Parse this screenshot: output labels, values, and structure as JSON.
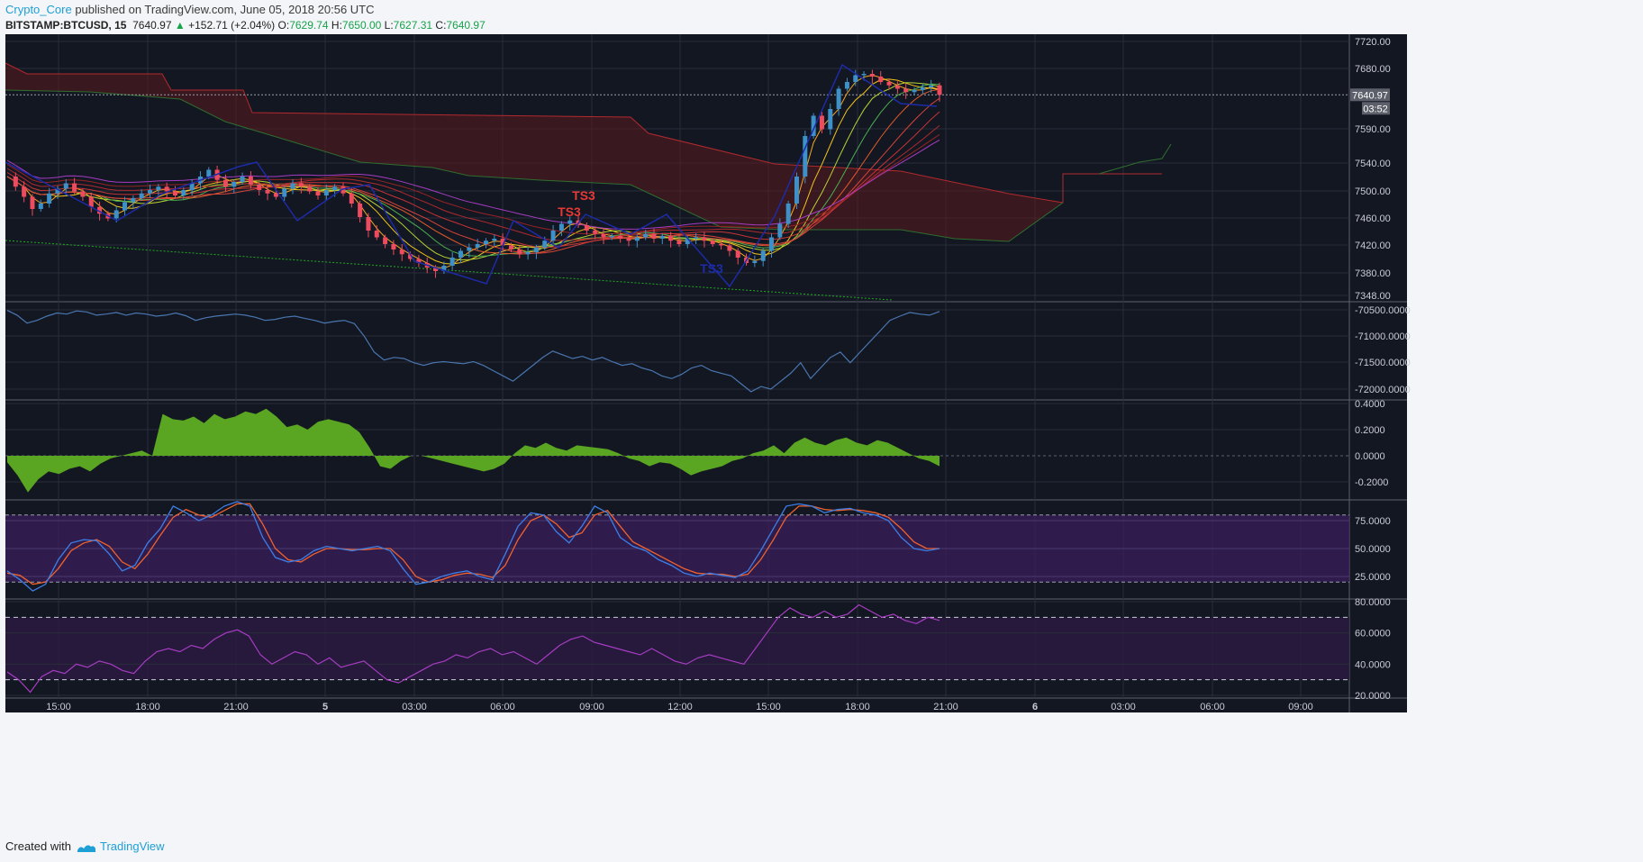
{
  "header": {
    "author": "Crypto_Core",
    "published_text": " published on TradingView.com, June 05, 2018 20:56 UTC",
    "symbol": "BITSTAMP:BTCUSD, 15",
    "last_price": "7640.97",
    "change": "+152.71 (+2.04%)",
    "open_label": "O:",
    "open": "7629.74",
    "high_label": "H:",
    "high": "7650.00",
    "low_label": "L:",
    "low": "7627.31",
    "close_label": "C:",
    "close": "7640.97"
  },
  "footer": {
    "created_with": "Created with",
    "brand": "TradingView"
  },
  "colors": {
    "background": "#131722",
    "grid": "#2a2e39",
    "up_candle": "#3d91c8",
    "down_candle": "#ef4b5f",
    "histogram": "#5aa521",
    "stoch_k": "#3d7ee6",
    "stoch_d": "#f0622d",
    "rsi": "#a63cc2",
    "obv": "#4a76b0",
    "zigzag": "#1d2ba8",
    "cloud": "#5a1a1e"
  },
  "chart_data": [
    {
      "type": "candlestick",
      "y_ticks": [
        "7720.00",
        "7680.00",
        "7590.00",
        "7540.00",
        "7500.00",
        "7460.00",
        "7420.00",
        "7380.00",
        "7348.00"
      ],
      "x_ticks": [
        "15:00",
        "18:00",
        "21:00",
        "5",
        "03:00",
        "06:00",
        "09:00",
        "12:00",
        "15:00",
        "18:00",
        "21:00",
        "6",
        "03:00",
        "06:00",
        "09:00"
      ],
      "last_price_label": "7640.97",
      "countdown_label": "03:52",
      "annotations": [
        "TS3",
        "TS3",
        "TS3"
      ],
      "ohlc_series": [
        7520,
        7505,
        7490,
        7472,
        7480,
        7495,
        7502,
        7510,
        7498,
        7490,
        7475,
        7465,
        7458,
        7470,
        7482,
        7488,
        7495,
        7500,
        7505,
        7498,
        7492,
        7500,
        7510,
        7520,
        7530,
        7515,
        7505,
        7512,
        7520,
        7508,
        7500,
        7495,
        7490,
        7502,
        7510,
        7505,
        7498,
        7492,
        7500,
        7505,
        7495,
        7480,
        7460,
        7440,
        7430,
        7420,
        7412,
        7405,
        7398,
        7392,
        7385,
        7380,
        7388,
        7400,
        7410,
        7415,
        7420,
        7425,
        7428,
        7418,
        7412,
        7405,
        7408,
        7415,
        7425,
        7440,
        7450,
        7455,
        7448,
        7440,
        7435,
        7430,
        7432,
        7428,
        7425,
        7430,
        7435,
        7428,
        7432,
        7425,
        7420,
        7428,
        7430,
        7425,
        7420,
        7418,
        7410,
        7400,
        7392,
        7395,
        7410,
        7430,
        7450,
        7480,
        7520,
        7580,
        7610,
        7590,
        7620,
        7650,
        7660,
        7670,
        7672,
        7668,
        7660,
        7655,
        7650,
        7645,
        7648,
        7652,
        7655,
        7641
      ]
    },
    {
      "type": "line",
      "y_ticks": [
        "-70500.0000",
        "-71000.0000",
        "-71500.0000",
        "-72000.0000"
      ],
      "series": [
        {
          "values": [
            -70510,
            -70600,
            -70750,
            -70700,
            -70620,
            -70560,
            -70580,
            -70520,
            -70540,
            -70600,
            -70580,
            -70550,
            -70600,
            -70560,
            -70580,
            -70620,
            -70600,
            -70560,
            -70610,
            -70700,
            -70650,
            -70620,
            -70600,
            -70580,
            -70600,
            -70640,
            -70700,
            -70680,
            -70640,
            -70620,
            -70660,
            -70700,
            -70750,
            -70720,
            -70700,
            -70760,
            -71000,
            -71300,
            -71450,
            -71400,
            -71420,
            -71500,
            -71550,
            -71500,
            -71480,
            -71500,
            -71520,
            -71480,
            -71550,
            -71650,
            -71750,
            -71850,
            -71700,
            -71550,
            -71400,
            -71280,
            -71350,
            -71420,
            -71380,
            -71450,
            -71400,
            -71480,
            -71550,
            -71520,
            -71600,
            -71650,
            -71750,
            -71800,
            -71720,
            -71600,
            -71550,
            -71650,
            -71700,
            -71750,
            -71900,
            -72050,
            -71950,
            -72000,
            -71850,
            -71700,
            -71500,
            -71800,
            -71600,
            -71400,
            -71300,
            -71500,
            -71300,
            -71100,
            -70900,
            -70700,
            -70620,
            -70550,
            -70580,
            -70600,
            -70530
          ]
        }
      ]
    },
    {
      "type": "area",
      "y_ticks": [
        "0.4000",
        "0.2000",
        "0.0000",
        "-0.2000"
      ],
      "series": [
        {
          "values": [
            -0.05,
            -0.15,
            -0.28,
            -0.18,
            -0.12,
            -0.14,
            -0.1,
            -0.08,
            -0.12,
            -0.06,
            -0.02,
            0.0,
            0.02,
            0.04,
            0.0,
            0.32,
            0.28,
            0.27,
            0.3,
            0.25,
            0.32,
            0.28,
            0.3,
            0.34,
            0.32,
            0.36,
            0.3,
            0.22,
            0.24,
            0.2,
            0.26,
            0.28,
            0.26,
            0.24,
            0.18,
            0.06,
            -0.08,
            -0.1,
            -0.04,
            0.0,
            0.0,
            -0.02,
            -0.04,
            -0.06,
            -0.08,
            -0.1,
            -0.12,
            -0.1,
            -0.06,
            0.02,
            0.08,
            0.06,
            0.1,
            0.06,
            0.04,
            0.08,
            0.07,
            0.06,
            0.05,
            0.02,
            -0.02,
            -0.04,
            -0.08,
            -0.05,
            -0.06,
            -0.1,
            -0.15,
            -0.12,
            -0.1,
            -0.08,
            -0.04,
            -0.02,
            0.02,
            0.04,
            0.08,
            0.02,
            0.1,
            0.14,
            0.1,
            0.08,
            0.12,
            0.14,
            0.1,
            0.08,
            0.12,
            0.1,
            0.06,
            0.02,
            -0.02,
            -0.04,
            -0.08
          ]
        }
      ]
    },
    {
      "type": "line",
      "y_ticks": [
        "75.0000",
        "50.0000",
        "25.0000"
      ],
      "series": [
        {
          "values": [
            30,
            22,
            12,
            18,
            40,
            55,
            58,
            57,
            45,
            30,
            35,
            55,
            68,
            88,
            82,
            75,
            80,
            88,
            92,
            88,
            60,
            42,
            38,
            40,
            48,
            52,
            50,
            48,
            50,
            52,
            48,
            32,
            18,
            20,
            25,
            28,
            30,
            25,
            22,
            45,
            70,
            82,
            80,
            65,
            55,
            70,
            88,
            82,
            60,
            52,
            48,
            40,
            35,
            28,
            25,
            28,
            26,
            24,
            30,
            48,
            68,
            88,
            90,
            88,
            82,
            85,
            86,
            82,
            80,
            75,
            60,
            50,
            48,
            50
          ]
        },
        {
          "values": [
            28,
            26,
            18,
            20,
            32,
            48,
            55,
            58,
            52,
            38,
            32,
            45,
            62,
            78,
            85,
            80,
            78,
            84,
            90,
            90,
            72,
            50,
            40,
            38,
            45,
            50,
            50,
            49,
            49,
            50,
            50,
            40,
            25,
            20,
            22,
            26,
            28,
            27,
            24,
            35,
            58,
            75,
            80,
            72,
            60,
            64,
            80,
            84,
            70,
            56,
            50,
            44,
            38,
            32,
            28,
            27,
            27,
            25,
            27,
            40,
            58,
            78,
            88,
            88,
            85,
            84,
            85,
            84,
            82,
            78,
            68,
            56,
            50,
            50
          ]
        }
      ]
    },
    {
      "type": "line",
      "y_ticks": [
        "80.0000",
        "60.0000",
        "40.0000",
        "20.0000"
      ],
      "series": [
        {
          "values": [
            35,
            30,
            22,
            32,
            36,
            34,
            40,
            38,
            42,
            40,
            36,
            34,
            42,
            48,
            50,
            48,
            52,
            50,
            56,
            60,
            62,
            58,
            46,
            40,
            44,
            48,
            46,
            40,
            44,
            38,
            40,
            42,
            36,
            30,
            28,
            32,
            36,
            40,
            42,
            46,
            44,
            48,
            50,
            46,
            48,
            44,
            40,
            46,
            52,
            56,
            58,
            54,
            52,
            50,
            48,
            46,
            50,
            46,
            42,
            40,
            44,
            46,
            44,
            42,
            40,
            50,
            60,
            70,
            76,
            72,
            70,
            74,
            70,
            72,
            78,
            74,
            70,
            72,
            68,
            66,
            70,
            68
          ]
        }
      ]
    }
  ]
}
